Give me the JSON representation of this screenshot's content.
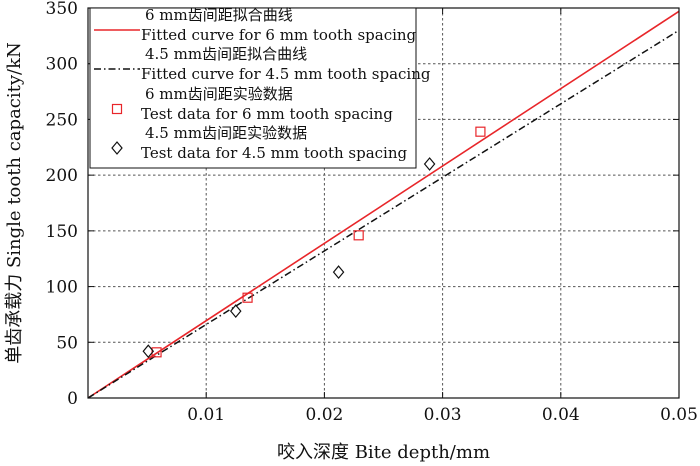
{
  "chart_data": {
    "type": "line",
    "xlabel": "咬入深度 Bite depth/mm",
    "ylabel": "单齿承载力 Single tooth capacity/kN",
    "xlim": [
      0,
      0.05
    ],
    "ylim": [
      0,
      350
    ],
    "x_ticks": [
      0.01,
      0.02,
      0.03,
      0.04,
      0.05
    ],
    "x_tick_labels": [
      "0.01",
      "0.02",
      "0.03",
      "0.04",
      "0.05"
    ],
    "y_ticks": [
      0,
      50,
      100,
      150,
      200,
      250,
      300,
      350
    ],
    "y_tick_labels": [
      "0",
      "50",
      "100",
      "150",
      "200",
      "250",
      "300",
      "350"
    ],
    "grid": true,
    "legend_position": "top-left",
    "series": [
      {
        "name": "6 mm齿间距拟合曲线 Fitted curve for 6 mm tooth spacing",
        "legend_line1": "6 mm齿间距拟合曲线",
        "legend_line2": "Fitted curve for 6 mm tooth spacing",
        "kind": "line",
        "style": "solid",
        "color": "#e8262a",
        "x": [
          0,
          0.05
        ],
        "y": [
          0,
          347
        ]
      },
      {
        "name": "4.5 mm齿间距拟合曲线 Fitted curve for 4.5 mm tooth spacing",
        "legend_line1": "4.5 mm齿间距拟合曲线",
        "legend_line2": "Fitted curve for 4.5 mm tooth spacing",
        "kind": "line",
        "style": "dashdot",
        "color": "#111111",
        "x": [
          0,
          0.05
        ],
        "y": [
          0,
          330
        ]
      },
      {
        "name": "6 mm齿间距实验数据 Test data for 6 mm tooth spacing",
        "legend_line1": "6 mm齿间距实验数据",
        "legend_line2": "Test data for 6 mm tooth spacing",
        "kind": "scatter",
        "marker": "square",
        "color": "#e8262a",
        "x": [
          0.0058,
          0.0135,
          0.0229,
          0.0332
        ],
        "y": [
          41,
          90,
          146,
          239
        ]
      },
      {
        "name": "4.5 mm齿间距实验数据 Test data for 4.5 mm tooth spacing",
        "legend_line1": "4.5 mm齿间距实验数据",
        "legend_line2": "Test data for 4.5 mm tooth spacing",
        "kind": "scatter",
        "marker": "diamond",
        "color": "#111111",
        "x": [
          0.0051,
          0.0125,
          0.0212,
          0.0289
        ],
        "y": [
          42,
          78,
          113,
          210
        ]
      }
    ]
  }
}
